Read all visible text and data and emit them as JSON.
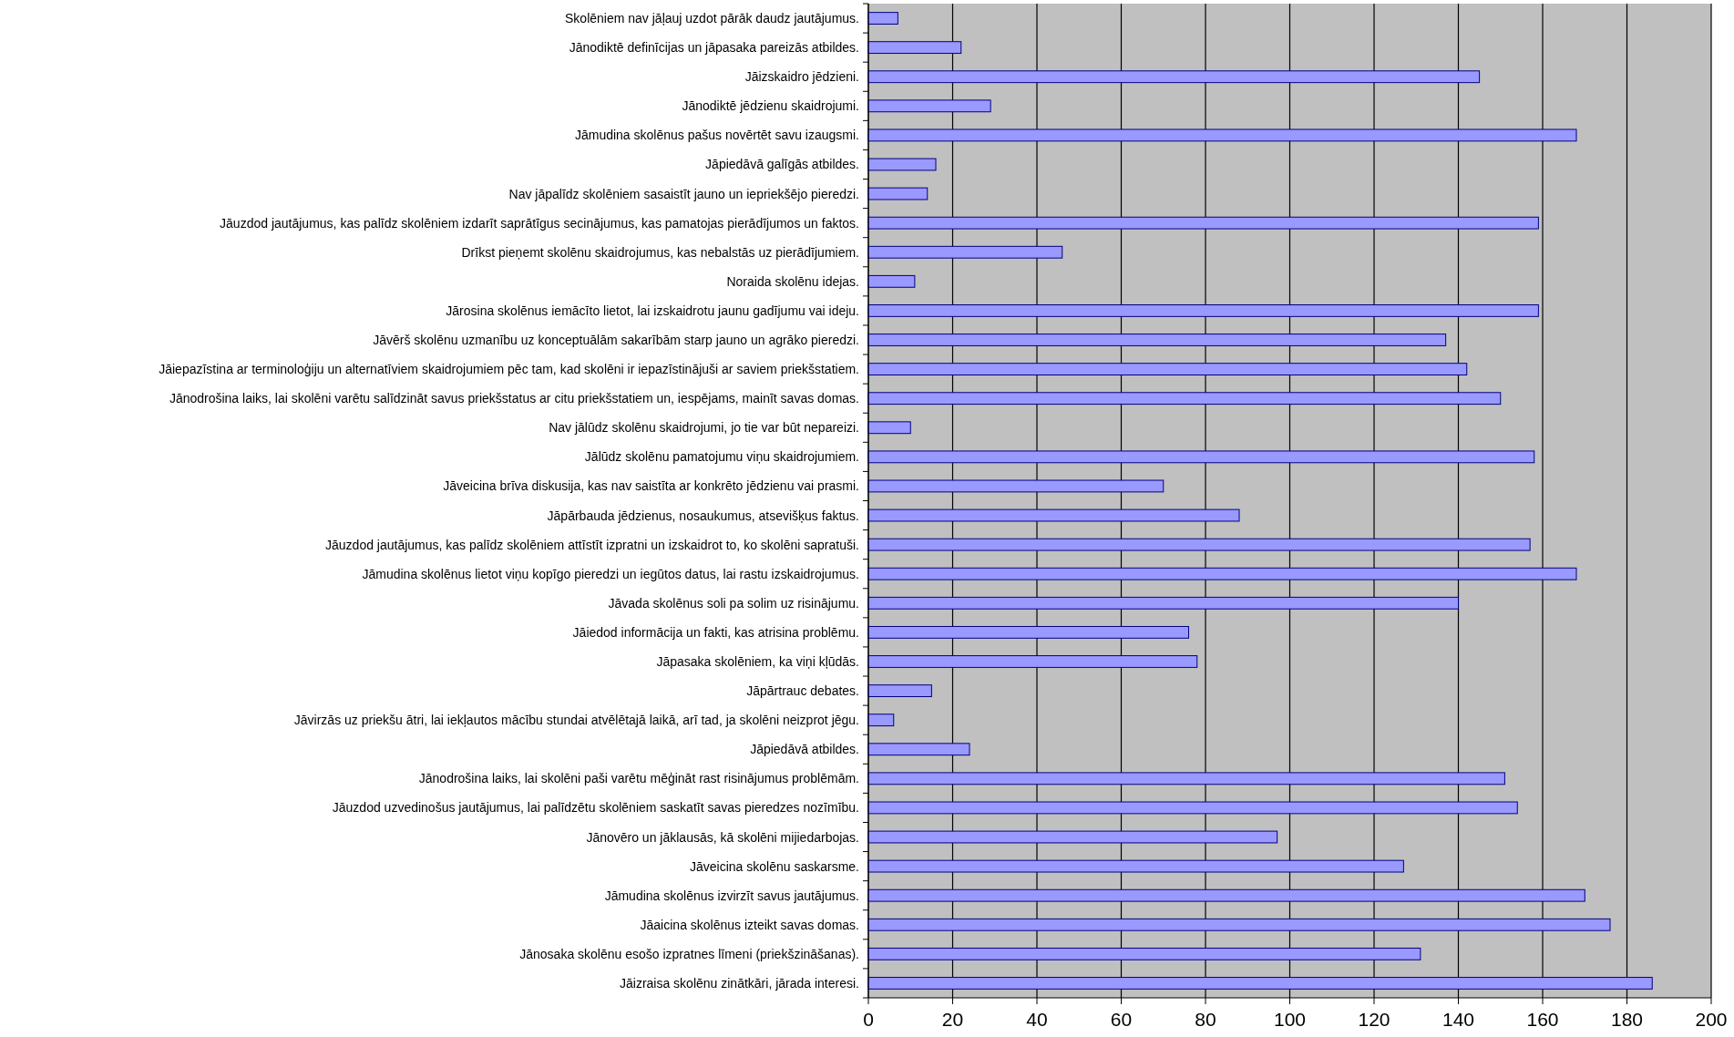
{
  "chart_data": {
    "type": "bar",
    "orientation": "horizontal",
    "categories": [
      "Skolēniem nav jāļauj uzdot pārāk daudz jautājumus.",
      "Jānodiktē definīcijas un jāpasaka pareizās atbildes.",
      "Jāizskaidro jēdzieni.",
      "Jānodiktē jēdzienu skaidrojumi.",
      "Jāmudina skolēnus pašus novērtēt savu izaugsmi.",
      "Jāpiedāvā galīgās atbildes.",
      "Nav jāpalīdz skolēniem sasaistīt jauno un iepriekšējo pieredzi.",
      "Jāuzdod jautājumus, kas palīdz skolēniem izdarīt saprātīgus secinājumus, kas pamatojas pierādījumos un faktos.",
      "Drīkst pieņemt skolēnu skaidrojumus, kas nebalstās uz pierādījumiem.",
      "Noraida skolēnu idejas.",
      "Jārosina skolēnus iemācīto lietot, lai izskaidrotu jaunu gadījumu vai ideju.",
      "Jāvērš skolēnu uzmanību uz konceptuālām sakarībām starp jauno un agrāko pieredzi.",
      "Jāiepazīstina ar terminoloģiju un alternatīviem skaidrojumiem pēc tam, kad skolēni ir iepazīstinājuši ar saviem priekšstatiem.",
      "Jānodrošina laiks, lai skolēni varētu salīdzināt savus priekšstatus ar citu priekšstatiem un, iespējams, mainīt savas domas.",
      "Nav jālūdz skolēnu skaidrojumi, jo tie var būt nepareizi.",
      "Jālūdz skolēnu pamatojumu viņu skaidrojumiem.",
      "Jāveicina brīva diskusija, kas nav saistīta ar konkrēto jēdzienu vai prasmi.",
      "Jāpārbauda jēdzienus, nosaukumus, atsevišķus faktus.",
      "Jāuzdod jautājumus, kas palīdz skolēniem attīstīt izpratni un izskaidrot to, ko skolēni sapratuši.",
      "Jāmudina skolēnus lietot viņu kopīgo pieredzi un iegūtos datus, lai rastu izskaidrojumus.",
      "Jāvada skolēnus soli pa solim uz risinājumu.",
      "Jāiedod informācija un fakti, kas atrisina problēmu.",
      "Jāpasaka skolēniem, ka viņi kļūdās.",
      "Jāpārtrauc debates.",
      "Jāvirzās uz priekšu ātri, lai iekļautos mācību stundai atvēlētajā laikā, arī tad, ja skolēni neizprot jēgu.",
      "Jāpiedāvā atbildes.",
      "Jānodrošina laiks, lai skolēni paši varētu mēģināt rast risinājumus problēmām.",
      "Jāuzdod uzvedinošus jautājumus, lai palīdzētu skolēniem saskatīt savas pieredzes nozīmību.",
      "Jānovēro un jāklausās, kā skolēni mijiedarbojas.",
      "Jāveicina skolēnu saskarsme.",
      "Jāmudina skolēnus izvirzīt savus jautājumus.",
      "Jāaicina skolēnus izteikt savas domas.",
      "Jānosaka skolēnu esošo izpratnes līmeni (priekšzināšanas).",
      "Jāizraisa skolēnu zinātkāri, jārada interesi."
    ],
    "values": [
      7,
      22,
      145,
      29,
      168,
      16,
      14,
      159,
      46,
      11,
      159,
      137,
      142,
      150,
      10,
      158,
      70,
      88,
      157,
      168,
      140,
      76,
      78,
      15,
      6,
      24,
      151,
      154,
      97,
      127,
      170,
      176,
      131,
      186
    ],
    "color": "#9999ff",
    "xlim": [
      0,
      200
    ],
    "xticks": [
      0,
      20,
      40,
      60,
      80,
      100,
      120,
      140,
      160,
      180,
      200
    ],
    "grid": "x"
  }
}
